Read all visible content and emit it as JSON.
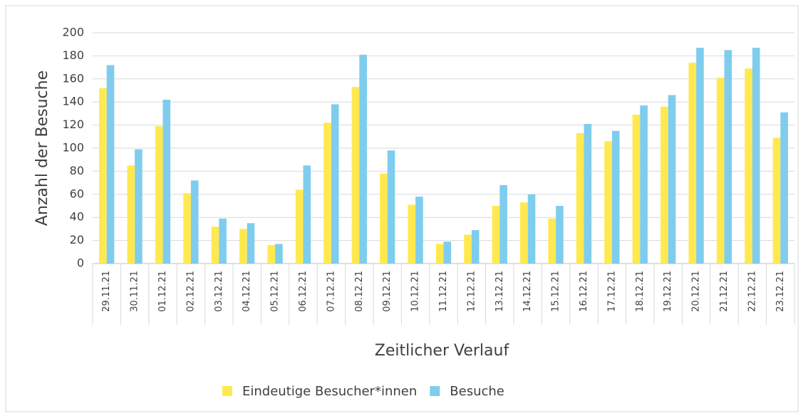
{
  "chart_data": {
    "type": "bar",
    "x_label": "Zeitlicher Verlauf",
    "y_label": "Anzahl der Besuche",
    "categories": [
      "29.11.21",
      "30.11.21",
      "01.12.21",
      "02.12.21",
      "03.12.21",
      "04.12.21",
      "05.12.21",
      "06.12.21",
      "07.12.21",
      "08.12.21",
      "09.12.21",
      "10.12.21",
      "11.12.21",
      "12.12.21",
      "13.12.21",
      "14.12.21",
      "15.12.21",
      "16.12.21",
      "17.12.21",
      "18.12.21",
      "19.12.21",
      "20.12.21",
      "21.12.21",
      "22.12.21",
      "23.12.21"
    ],
    "series": [
      {
        "name": "Eindeutige Besucher*innen",
        "color": "#ffe94f",
        "values": [
          152,
          85,
          119,
          61,
          32,
          30,
          16,
          64,
          122,
          153,
          78,
          51,
          17,
          25,
          50,
          53,
          39,
          113,
          106,
          129,
          136,
          174,
          161,
          169,
          109
        ]
      },
      {
        "name": "Besuche",
        "color": "#7fcdee",
        "values": [
          172,
          99,
          142,
          72,
          39,
          35,
          17,
          85,
          138,
          181,
          98,
          58,
          19,
          29,
          68,
          60,
          50,
          121,
          115,
          137,
          146,
          187,
          185,
          187,
          131
        ]
      }
    ],
    "ylim": [
      0,
      200
    ],
    "yticks": [
      0,
      20,
      40,
      60,
      80,
      100,
      120,
      140,
      160,
      180,
      200
    ],
    "grid": true,
    "legend": "bottom"
  }
}
